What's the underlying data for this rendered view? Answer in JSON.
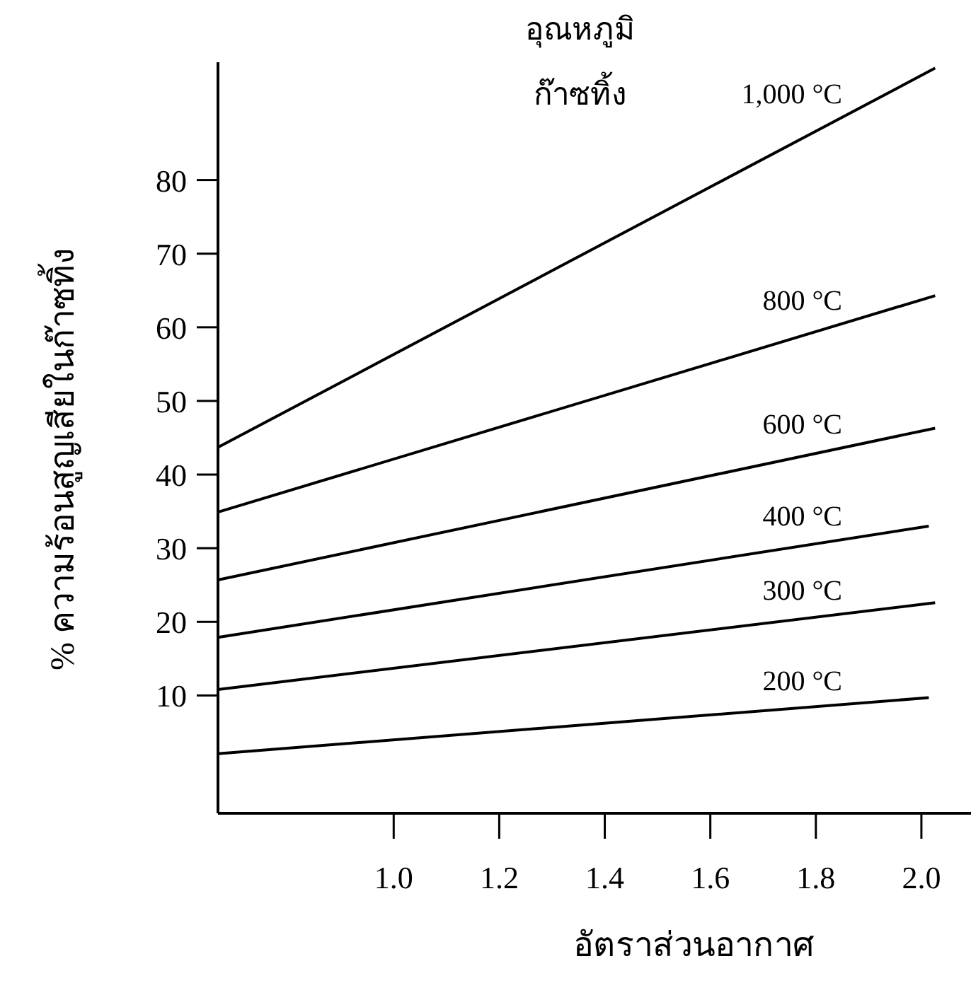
{
  "chart_data": {
    "type": "line",
    "legend_title": "อุณหภูมิ\nก๊าซทิ้ง",
    "xlabel": "อัตราส่วนอากาศ",
    "ylabel": "% ความร้อนสูญเสียในก๊าซทิ้ง",
    "xlim": [
      0.667,
      2.094
    ],
    "ylim": [
      -6,
      96
    ],
    "xticks": [
      {
        "value": 1.0,
        "label": "1.0"
      },
      {
        "value": 1.2,
        "label": "1.2"
      },
      {
        "value": 1.4,
        "label": "1.4"
      },
      {
        "value": 1.6,
        "label": "1.6"
      },
      {
        "value": 1.8,
        "label": "1.8"
      },
      {
        "value": 2.0,
        "label": "2.0"
      }
    ],
    "yticks": [
      10,
      20,
      30,
      40,
      50,
      60,
      70,
      80
    ],
    "grid": false,
    "marker": "none",
    "line_style": "solid",
    "series": [
      {
        "name": "1,000 °C",
        "color": "#000000",
        "x": [
          0.667,
          2.026
        ],
        "values": [
          43.7,
          95.2
        ]
      },
      {
        "name": "800 °C",
        "color": "#000000",
        "x": [
          0.667,
          2.026
        ],
        "values": [
          34.9,
          64.3
        ]
      },
      {
        "name": "600 °C",
        "color": "#000000",
        "x": [
          0.667,
          2.026
        ],
        "values": [
          25.7,
          46.3
        ]
      },
      {
        "name": "400 °C",
        "color": "#000000",
        "x": [
          0.667,
          2.014
        ],
        "values": [
          17.9,
          33.0
        ]
      },
      {
        "name": "300 °C",
        "color": "#000000",
        "x": [
          0.667,
          2.026
        ],
        "values": [
          10.8,
          22.6
        ]
      },
      {
        "name": "200 °C",
        "color": "#000000",
        "x": [
          0.667,
          2.014
        ],
        "values": [
          2.1,
          9.7
        ]
      }
    ]
  }
}
